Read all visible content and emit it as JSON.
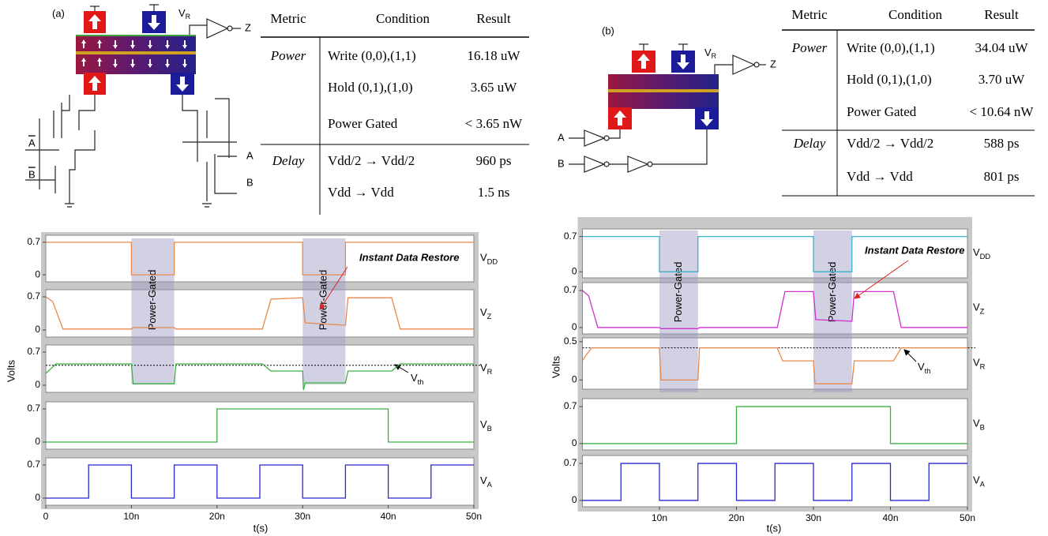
{
  "figure": {
    "circuit_a": {
      "label": "(a)",
      "vr": "V",
      "vr_sub": "R",
      "out": "Z",
      "ctl_a": "A",
      "ctl_b": "B",
      "in_a": "A",
      "in_b": "B"
    },
    "table_a": {
      "header": [
        "Metric",
        "Condition",
        "Result"
      ],
      "groups": [
        {
          "metric": "Power",
          "rows": [
            [
              "Write (0,0),(1,1)",
              "16.18 uW"
            ],
            [
              "Hold  (0,1),(1,0)",
              "3.65 uW"
            ],
            [
              "Power Gated",
              "< 3.65 nW"
            ]
          ]
        },
        {
          "metric": "Delay",
          "rows": [
            [
              "Vdd/2 → Vdd/2",
              "960 ps"
            ],
            [
              "Vdd → Vdd",
              "1.5 ns"
            ]
          ]
        }
      ]
    },
    "circuit_b": {
      "label": "(b)",
      "vr": "V",
      "vr_sub": "R",
      "out": "Z",
      "in_a": "A",
      "in_b": "B"
    },
    "table_b": {
      "header": [
        "Metric",
        "Condition",
        "Result"
      ],
      "groups": [
        {
          "metric": "Power",
          "rows": [
            [
              "Write (0,0),(1,1)",
              "34.04 uW"
            ],
            [
              "Hold  (0,1),(1,0)",
              "3.70 uW"
            ],
            [
              "Power Gated",
              "< 10.64 nW"
            ]
          ]
        },
        {
          "metric": "Delay",
          "rows": [
            [
              "Vdd/2 → Vdd/2",
              "588 ps"
            ],
            [
              "Vdd → Vdd",
              "801 ps"
            ]
          ]
        }
      ]
    }
  },
  "chart_data": [
    {
      "type": "line",
      "ylabel": "Volts",
      "xlabel": "t(s)",
      "xlim": [
        0,
        50
      ],
      "xticks": [
        0,
        {
          "value": 10,
          "label": "10n"
        },
        {
          "value": 20,
          "label": "20n"
        },
        {
          "value": 30,
          "label": "30n"
        },
        {
          "value": 40,
          "label": "40n"
        },
        {
          "value": 50,
          "label": "50n"
        }
      ],
      "gated_intervals": [
        [
          10,
          15
        ],
        [
          30,
          35
        ]
      ],
      "gated_label": "Power-Gated",
      "annotation": "Instant Data Restore",
      "subplots": [
        {
          "label": "V",
          "label_sub": "DD",
          "ylim": [
            -0.15,
            0.85
          ],
          "yticks": [
            0,
            0.7
          ],
          "series": [
            {
              "color": "#e8894a",
              "x": [
                0,
                10,
                10,
                15,
                15,
                30,
                30,
                35,
                35,
                50
              ],
              "values": [
                0.7,
                0.7,
                0,
                0,
                0.7,
                0.7,
                0,
                0,
                0.7,
                0.7
              ]
            }
          ]
        },
        {
          "label": "V",
          "label_sub": "Z",
          "ylim": [
            -0.15,
            0.85
          ],
          "yticks": [
            0,
            0.7
          ],
          "series": [
            {
              "color": "#e8894a",
              "x": [
                0,
                0.8,
                2,
                10,
                10.2,
                15,
                15.2,
                25.3,
                26.3,
                30,
                30.3,
                35,
                35.3,
                40.4,
                41.4,
                50
              ],
              "values": [
                0.7,
                0.6,
                0.02,
                0.02,
                0.05,
                0.05,
                0.02,
                0.02,
                0.65,
                0.68,
                0.15,
                0.1,
                0.68,
                0.68,
                0.02,
                0.02
              ]
            }
          ]
        },
        {
          "label": "V",
          "label_sub": "R",
          "ylim": [
            -0.15,
            0.85
          ],
          "yticks": [
            0,
            0.7
          ],
          "vth": 0.42,
          "vth_label": "V",
          "vth_sub": "th",
          "series": [
            {
              "color": "#3cb043",
              "x": [
                0,
                0.3,
                1.2,
                10,
                10.2,
                15,
                15.2,
                25.3,
                26.3,
                30,
                30.1,
                30.3,
                35,
                35.3,
                40.4,
                41.4,
                50
              ],
              "values": [
                0.25,
                0.3,
                0.45,
                0.45,
                0.03,
                0.03,
                0.45,
                0.45,
                0.3,
                0.3,
                -0.1,
                0.05,
                0.05,
                0.3,
                0.3,
                0.45,
                0.45
              ]
            }
          ]
        },
        {
          "label": "V",
          "label_sub": "B",
          "ylim": [
            -0.15,
            0.85
          ],
          "yticks": [
            0,
            0.7
          ],
          "series": [
            {
              "color": "#3cb043",
              "x": [
                0,
                20,
                20,
                40,
                40,
                50
              ],
              "values": [
                0,
                0,
                0.7,
                0.7,
                0,
                0
              ]
            }
          ]
        },
        {
          "label": "V",
          "label_sub": "A",
          "ylim": [
            -0.15,
            0.85
          ],
          "yticks": [
            0,
            0.7
          ],
          "series": [
            {
              "color": "#2828d0",
              "x": [
                0,
                5,
                5,
                10,
                10,
                15,
                15,
                20,
                20,
                25,
                25,
                30,
                30,
                35,
                35,
                40,
                40,
                45,
                45,
                50
              ],
              "values": [
                0,
                0,
                0.7,
                0.7,
                0,
                0,
                0.7,
                0.7,
                0,
                0,
                0.7,
                0.7,
                0,
                0,
                0.7,
                0.7,
                0,
                0,
                0.7,
                0.7
              ]
            }
          ]
        }
      ]
    },
    {
      "type": "line",
      "ylabel": "Volts",
      "xlabel": "t(s)",
      "xlim": [
        0,
        50
      ],
      "xticks": [
        {
          "value": 10,
          "label": "10n"
        },
        {
          "value": 20,
          "label": "20n"
        },
        {
          "value": 30,
          "label": "30n"
        },
        {
          "value": 40,
          "label": "40n"
        },
        {
          "value": 50,
          "label": "50n"
        }
      ],
      "gated_intervals": [
        [
          10,
          15
        ],
        [
          30,
          35
        ]
      ],
      "gated_label": "Power-Gated",
      "annotation": "Instant Data Restore",
      "subplots": [
        {
          "label": "V",
          "label_sub": "DD",
          "ylim": [
            -0.12,
            0.85
          ],
          "yticks": [
            0,
            0.7
          ],
          "series": [
            {
              "color": "#3ab0c8",
              "x": [
                0,
                10,
                10,
                15,
                15,
                30,
                30,
                35,
                35,
                50
              ],
              "values": [
                0.7,
                0.7,
                0,
                0,
                0.7,
                0.7,
                0,
                0,
                0.7,
                0.7
              ]
            }
          ]
        },
        {
          "label": "V",
          "label_sub": "Z",
          "ylim": [
            -0.12,
            0.85
          ],
          "yticks": [
            0,
            0.7
          ],
          "series": [
            {
              "color": "#d030d0",
              "x": [
                0,
                0.8,
                2,
                10,
                10.2,
                15,
                15.2,
                25.3,
                26.3,
                30,
                30.3,
                35,
                35.3,
                40.4,
                41.4,
                50
              ],
              "values": [
                0.7,
                0.6,
                0,
                0,
                -0.02,
                -0.02,
                0,
                0,
                0.68,
                0.68,
                0.15,
                0.12,
                0.68,
                0.68,
                0,
                0
              ]
            }
          ]
        },
        {
          "label": "V",
          "label_sub": "R",
          "ylim": [
            -0.12,
            0.55
          ],
          "yticks": [
            0,
            0.5
          ],
          "vth": 0.42,
          "vth_label": "V",
          "vth_sub": "th",
          "series": [
            {
              "color": "#e8894a",
              "x": [
                0,
                0.3,
                1.2,
                10,
                10.2,
                15,
                15.2,
                25.3,
                26,
                30,
                30.2,
                35,
                35.3,
                40.4,
                41.4,
                50
              ],
              "values": [
                0.25,
                0.3,
                0.42,
                0.42,
                0,
                0,
                0.42,
                0.42,
                0.25,
                0.25,
                -0.05,
                -0.05,
                0.25,
                0.25,
                0.42,
                0.42
              ]
            }
          ]
        },
        {
          "label": "V",
          "label_sub": "B",
          "ylim": [
            -0.12,
            0.85
          ],
          "yticks": [
            0,
            0.7
          ],
          "series": [
            {
              "color": "#3cb043",
              "x": [
                0,
                20,
                20,
                40,
                40,
                50
              ],
              "values": [
                0,
                0,
                0.7,
                0.7,
                0,
                0
              ]
            }
          ]
        },
        {
          "label": "V",
          "label_sub": "A",
          "ylim": [
            -0.12,
            0.85
          ],
          "yticks": [
            0,
            0.7
          ],
          "series": [
            {
              "color": "#2828d0",
              "x": [
                0,
                5,
                5,
                10,
                10,
                15,
                15,
                20,
                20,
                25,
                25,
                30,
                30,
                35,
                35,
                40,
                40,
                45,
                45,
                50
              ],
              "values": [
                0,
                0,
                0.7,
                0.7,
                0,
                0,
                0.7,
                0.7,
                0,
                0,
                0.7,
                0.7,
                0,
                0,
                0.7,
                0.7,
                0,
                0,
                0.7,
                0.7
              ]
            }
          ]
        }
      ]
    }
  ]
}
